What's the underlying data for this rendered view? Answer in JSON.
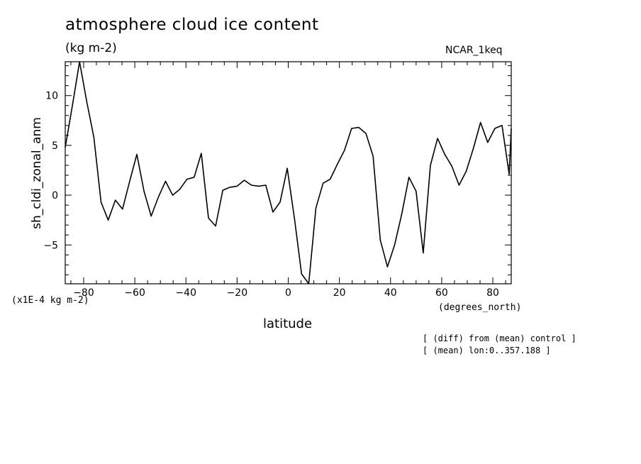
{
  "header": {
    "title": "atmosphere cloud ice content",
    "units": "(kg m-2)",
    "model": "NCAR_1keq"
  },
  "footer": {
    "scale_note": "(x1E-4 kg m-2)",
    "x_units": "(degrees_north)",
    "note_1": "[ (diff) from (mean) control ]",
    "note_2": "[ (mean) lon:0..357.188 ]"
  },
  "chart_data": {
    "type": "line",
    "xlabel": "latitude",
    "ylabel": "sh_cldi_zonal_anm",
    "xlim": [
      -87.2,
      87.2
    ],
    "ylim": [
      -8.9,
      13.4
    ],
    "x_ticks": [
      -80,
      -60,
      -40,
      -20,
      0,
      20,
      40,
      60,
      80
    ],
    "y_ticks": [
      -5,
      0,
      5,
      10
    ],
    "grid": false,
    "series": [
      {
        "x": [
          -87.2,
          -84.4,
          -81.6,
          -78.8,
          -76.0,
          -73.2,
          -70.4,
          -67.6,
          -64.8,
          -62.0,
          -59.2,
          -56.4,
          -53.6,
          -50.8,
          -48.0,
          -45.2,
          -42.4,
          -39.6,
          -36.8,
          -34.0,
          -31.2,
          -28.4,
          -25.6,
          -22.8,
          -20.0,
          -17.2,
          -14.4,
          -11.6,
          -8.8,
          -6.0,
          -3.2,
          -0.4,
          2.4,
          5.2,
          8.0,
          10.8,
          13.6,
          16.4,
          19.2,
          22.0,
          24.8,
          27.6,
          30.4,
          33.2,
          36.0,
          38.8,
          41.6,
          44.4,
          47.2,
          50.0,
          52.8,
          55.6,
          58.4,
          61.2,
          64.0,
          66.8,
          69.6,
          72.4,
          75.2,
          78.0,
          80.8,
          83.6,
          86.4,
          87.2
        ],
        "y": [
          4.8,
          9.0,
          13.4,
          9.4,
          5.8,
          -0.7,
          -2.5,
          -0.5,
          -1.4,
          1.4,
          4.1,
          0.4,
          -2.1,
          -0.2,
          1.4,
          0.0,
          0.6,
          1.6,
          1.8,
          4.2,
          -2.3,
          -3.1,
          0.5,
          0.8,
          0.9,
          1.5,
          1.0,
          0.9,
          1.0,
          -1.7,
          -0.7,
          2.7,
          -2.3,
          -7.9,
          -8.9,
          -1.3,
          1.2,
          1.6,
          3.1,
          4.5,
          6.7,
          6.8,
          6.2,
          3.9,
          -4.5,
          -7.2,
          -5.0,
          -1.9,
          1.8,
          0.4,
          -5.8,
          3.0,
          5.7,
          4.1,
          2.9,
          1.0,
          2.4,
          4.7,
          7.3,
          5.3,
          6.7,
          7.0,
          2.1,
          6.7
        ]
      }
    ]
  }
}
